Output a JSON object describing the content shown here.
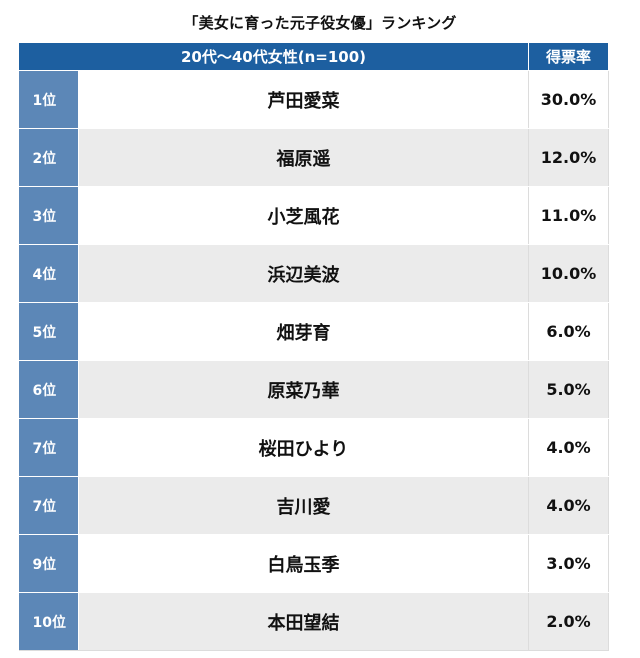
{
  "title": "「美女に育った元子役女優」ランキング",
  "table": {
    "header_group": "20代〜40代女性(n=100)",
    "header_votes": "得票率",
    "rows": [
      {
        "rank": "1位",
        "name": "芦田愛菜",
        "pct": "30.0%"
      },
      {
        "rank": "2位",
        "name": "福原遥",
        "pct": "12.0%"
      },
      {
        "rank": "3位",
        "name": "小芝風花",
        "pct": "11.0%"
      },
      {
        "rank": "4位",
        "name": "浜辺美波",
        "pct": "10.0%"
      },
      {
        "rank": "5位",
        "name": "畑芽育",
        "pct": "6.0%"
      },
      {
        "rank": "6位",
        "name": "原菜乃華",
        "pct": "5.0%"
      },
      {
        "rank": "7位",
        "name": "桜田ひより",
        "pct": "4.0%"
      },
      {
        "rank": "7位",
        "name": "吉川愛",
        "pct": "4.0%"
      },
      {
        "rank": "9位",
        "name": "白鳥玉季",
        "pct": "3.0%"
      },
      {
        "rank": "10位",
        "name": "本田望結",
        "pct": "2.0%"
      }
    ]
  },
  "colors": {
    "header_bg": "#1d5fa0",
    "rank_bg": "#5c87b7",
    "stripe_bg": "#ebebeb"
  }
}
